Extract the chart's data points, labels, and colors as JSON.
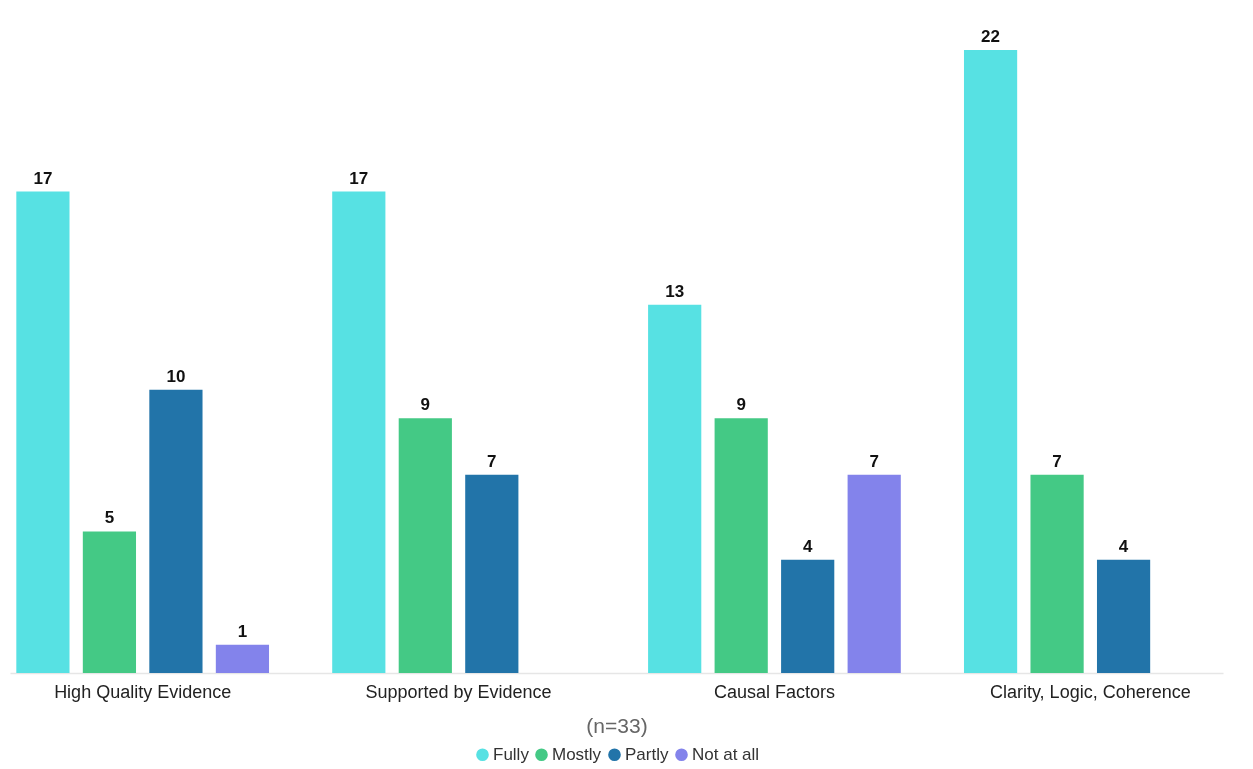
{
  "chart_data": {
    "type": "bar",
    "xlabel": "(n=33)",
    "categories": [
      "High Quality Evidence",
      "Supported by Evidence",
      "Causal Factors",
      "Clarity, Logic, Coherence"
    ],
    "series": [
      {
        "name": "Fully",
        "color": "#57e1e3",
        "values": [
          17,
          17,
          13,
          22
        ]
      },
      {
        "name": "Mostly",
        "color": "#44c985",
        "values": [
          5,
          9,
          9,
          7
        ]
      },
      {
        "name": "Partly",
        "color": "#2274a9",
        "values": [
          10,
          7,
          4,
          4
        ]
      },
      {
        "name": "Not at all",
        "color": "#8383eb",
        "values": [
          1,
          null,
          7,
          null
        ]
      }
    ],
    "data_labels": true,
    "legend": "bottom"
  }
}
